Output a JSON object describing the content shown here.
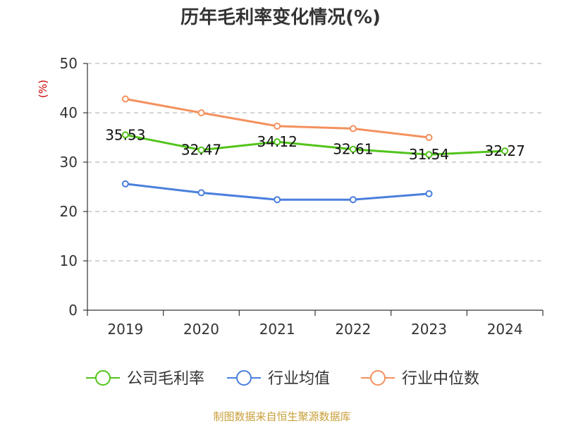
{
  "chart_data": {
    "type": "line",
    "title": "历年毛利率变化情况(%)",
    "ylabel": "(%)",
    "xlabel": "",
    "categories": [
      "2019",
      "2020",
      "2021",
      "2022",
      "2023",
      "2024"
    ],
    "ylim": [
      0,
      50
    ],
    "yticks": [
      0,
      10,
      20,
      30,
      40,
      50
    ],
    "grid": true,
    "legend_position": "bottom",
    "series": [
      {
        "name": "公司毛利率",
        "color": "#52c41a",
        "values": [
          35.53,
          32.47,
          34.12,
          32.61,
          31.54,
          32.27
        ],
        "labels": [
          "35.53",
          "32.47",
          "34.12",
          "32.61",
          "31.54",
          "32.27"
        ]
      },
      {
        "name": "行业均值",
        "color": "#4a7fdc",
        "values": [
          25.6,
          23.8,
          22.4,
          22.4,
          23.6,
          null
        ]
      },
      {
        "name": "行业中位数",
        "color": "#f4915e",
        "values": [
          42.8,
          40.0,
          37.3,
          36.8,
          35.0,
          null
        ]
      }
    ]
  },
  "source": "制图数据来自恒生聚源数据库"
}
